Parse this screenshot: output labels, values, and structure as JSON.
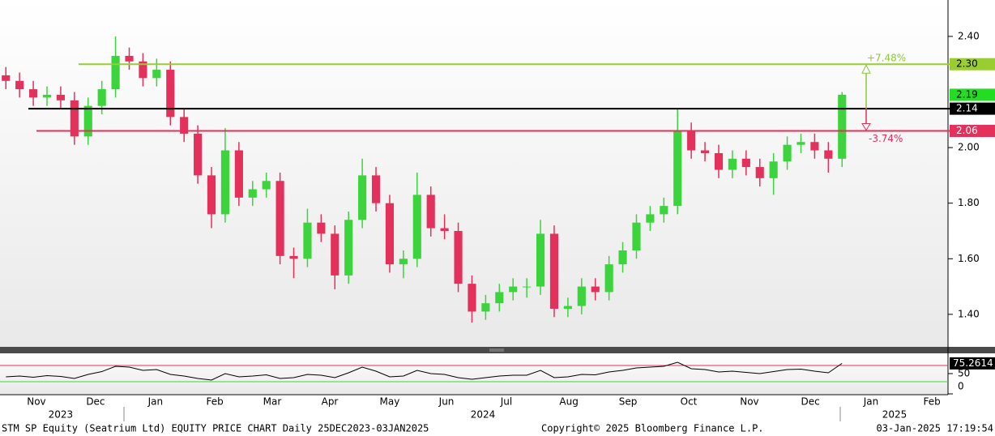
{
  "chart_data": [
    {
      "type": "candlestick",
      "xlim": [
        0,
        484.1
      ],
      "ylim": [
        1.283,
        2.531
      ],
      "yticks": [
        {
          "value": 1.4,
          "label": "1.40"
        },
        {
          "value": 1.6,
          "label": "1.60"
        },
        {
          "value": 1.8,
          "label": "1.80"
        },
        {
          "value": 2.0,
          "label": "2.00"
        },
        {
          "value": 2.4,
          "label": "2.40"
        }
      ],
      "xticks": [
        {
          "value": 18.6,
          "label": "Nov"
        },
        {
          "value": 48.8,
          "label": "Dec"
        },
        {
          "value": 79.4,
          "label": "Jan"
        },
        {
          "value": 109.7,
          "label": "Feb"
        },
        {
          "value": 139.0,
          "label": "Mar"
        },
        {
          "value": 168.4,
          "label": "Apr"
        },
        {
          "value": 199.0,
          "label": "May"
        },
        {
          "value": 228.0,
          "label": "Jun"
        },
        {
          "value": 258.6,
          "label": "Jul"
        },
        {
          "value": 290.5,
          "label": "Aug"
        },
        {
          "value": 320.7,
          "label": "Sep"
        },
        {
          "value": 351.7,
          "label": "Oct"
        },
        {
          "value": 382.7,
          "label": "Nov"
        },
        {
          "value": 413.8,
          "label": "Dec"
        },
        {
          "value": 444.8,
          "label": "Jan"
        },
        {
          "value": 475.9,
          "label": "Feb"
        }
      ],
      "year_ticks": [
        {
          "value": 31.0,
          "label": "2023"
        },
        {
          "value": 246.6,
          "label": "2024"
        },
        {
          "value": 456.8,
          "label": "2025"
        }
      ],
      "grid": false,
      "up_color": "#3cd43c",
      "down_color": "#e3315c",
      "x": [
        3,
        10,
        17,
        24,
        31,
        38,
        45,
        52,
        59,
        66,
        73,
        80,
        87,
        94,
        101,
        108,
        115,
        122,
        129,
        136,
        143,
        150,
        157,
        164,
        171,
        178,
        185,
        192,
        199,
        206,
        213,
        220,
        227,
        234,
        241,
        248,
        255,
        262,
        269,
        276,
        283,
        290,
        297,
        304,
        311,
        318,
        325,
        332,
        339,
        346,
        353,
        360,
        367,
        374,
        381,
        388,
        395,
        402,
        409,
        416,
        423,
        430
      ],
      "open": [
        2.26,
        2.24,
        2.21,
        2.18,
        2.19,
        2.17,
        2.04,
        2.15,
        2.21,
        2.33,
        2.31,
        2.25,
        2.28,
        2.11,
        2.05,
        1.9,
        1.76,
        1.99,
        1.82,
        1.85,
        1.88,
        1.61,
        1.6,
        1.73,
        1.69,
        1.54,
        1.74,
        1.9,
        1.8,
        1.58,
        1.6,
        1.83,
        1.71,
        1.7,
        1.51,
        1.41,
        1.44,
        1.48,
        1.5,
        1.5,
        1.69,
        1.42,
        1.43,
        1.5,
        1.48,
        1.58,
        1.63,
        1.73,
        1.76,
        1.79,
        2.06,
        1.99,
        1.98,
        1.92,
        1.96,
        1.93,
        1.89,
        1.95,
        2.01,
        2.02,
        1.99,
        1.96
      ],
      "high": [
        2.29,
        2.27,
        2.24,
        2.22,
        2.22,
        2.2,
        2.18,
        2.24,
        2.4,
        2.36,
        2.34,
        2.32,
        2.31,
        2.14,
        2.08,
        1.93,
        2.07,
        2.02,
        1.88,
        1.91,
        1.91,
        1.64,
        1.78,
        1.76,
        1.72,
        1.77,
        1.96,
        1.93,
        1.83,
        1.63,
        1.91,
        1.86,
        1.76,
        1.73,
        1.54,
        1.47,
        1.51,
        1.53,
        1.53,
        1.74,
        1.72,
        1.46,
        1.53,
        1.53,
        1.61,
        1.66,
        1.76,
        1.79,
        1.82,
        2.14,
        2.09,
        2.02,
        2.01,
        1.99,
        1.99,
        1.96,
        1.98,
        2.04,
        2.05,
        2.05,
        2.02,
        2.2
      ],
      "low": [
        2.21,
        2.18,
        2.15,
        2.15,
        2.14,
        2.01,
        2.01,
        2.12,
        2.18,
        2.28,
        2.22,
        2.22,
        2.08,
        2.02,
        1.87,
        1.71,
        1.73,
        1.79,
        1.79,
        1.82,
        1.58,
        1.53,
        1.57,
        1.66,
        1.49,
        1.51,
        1.71,
        1.77,
        1.55,
        1.53,
        1.57,
        1.68,
        1.67,
        1.48,
        1.37,
        1.38,
        1.41,
        1.45,
        1.46,
        1.47,
        1.39,
        1.39,
        1.4,
        1.45,
        1.45,
        1.55,
        1.6,
        1.7,
        1.73,
        1.76,
        1.96,
        1.95,
        1.89,
        1.89,
        1.9,
        1.86,
        1.83,
        1.92,
        1.98,
        1.96,
        1.91,
        1.93
      ],
      "close": [
        2.24,
        2.21,
        2.18,
        2.19,
        2.17,
        2.04,
        2.15,
        2.21,
        2.33,
        2.31,
        2.25,
        2.28,
        2.11,
        2.05,
        1.9,
        1.76,
        1.99,
        1.82,
        1.85,
        1.88,
        1.61,
        1.6,
        1.73,
        1.69,
        1.54,
        1.74,
        1.9,
        1.8,
        1.58,
        1.6,
        1.83,
        1.71,
        1.7,
        1.51,
        1.41,
        1.44,
        1.48,
        1.5,
        1.5,
        1.69,
        1.42,
        1.43,
        1.5,
        1.48,
        1.58,
        1.63,
        1.73,
        1.76,
        1.79,
        2.06,
        1.99,
        1.98,
        1.92,
        1.96,
        1.93,
        1.89,
        1.95,
        2.01,
        2.02,
        1.99,
        1.96,
        2.19
      ],
      "levels": [
        {
          "value": 2.3,
          "label": "2.30",
          "color": "#9acd32"
        },
        {
          "value": 2.14,
          "label": "2.14",
          "color": "#000000"
        },
        {
          "value": 2.06,
          "label": "2.06",
          "color": "#e3315c"
        }
      ],
      "last_price": {
        "value": 2.19,
        "label": "2.19",
        "color": "#22dd22"
      },
      "annotations": [
        {
          "text": "+7.48%",
          "color": "#8dc63f"
        },
        {
          "text": "-3.74%",
          "color": "#e3315c"
        }
      ]
    },
    {
      "type": "line",
      "ylim": [
        0,
        100
      ],
      "yticks": [
        0,
        50
      ],
      "bands": [
        {
          "value": 70,
          "color": "#e3315c"
        },
        {
          "value": 30,
          "color": "#3cd43c"
        }
      ],
      "color": "#000000",
      "x": [
        3,
        10,
        17,
        24,
        31,
        38,
        45,
        52,
        59,
        66,
        73,
        80,
        87,
        94,
        101,
        108,
        115,
        122,
        129,
        136,
        143,
        150,
        157,
        164,
        171,
        178,
        185,
        192,
        199,
        206,
        213,
        220,
        227,
        234,
        241,
        248,
        255,
        262,
        269,
        276,
        283,
        290,
        297,
        304,
        311,
        318,
        325,
        332,
        339,
        346,
        353,
        360,
        367,
        374,
        381,
        388,
        395,
        402,
        409,
        416,
        423,
        430
      ],
      "values": [
        42,
        44,
        41,
        45,
        43,
        38,
        48,
        55,
        68,
        66,
        58,
        60,
        48,
        44,
        38,
        34,
        50,
        42,
        44,
        47,
        38,
        40,
        48,
        46,
        40,
        52,
        66,
        56,
        42,
        44,
        58,
        50,
        48,
        40,
        36,
        40,
        44,
        46,
        46,
        58,
        40,
        42,
        48,
        47,
        54,
        58,
        64,
        66,
        68,
        78,
        62,
        60,
        54,
        56,
        53,
        50,
        55,
        60,
        61,
        56,
        52,
        75.2614
      ]
    }
  ],
  "footer": {
    "left": "STM SP Equity (Seatrium Ltd) EQUITY PRICE CHART  Daily 25DEC2023-03JAN2025",
    "center": "Copyright© 2025 Bloomberg Finance L.P.",
    "right": "03-Jan-2025 17:19:54"
  }
}
